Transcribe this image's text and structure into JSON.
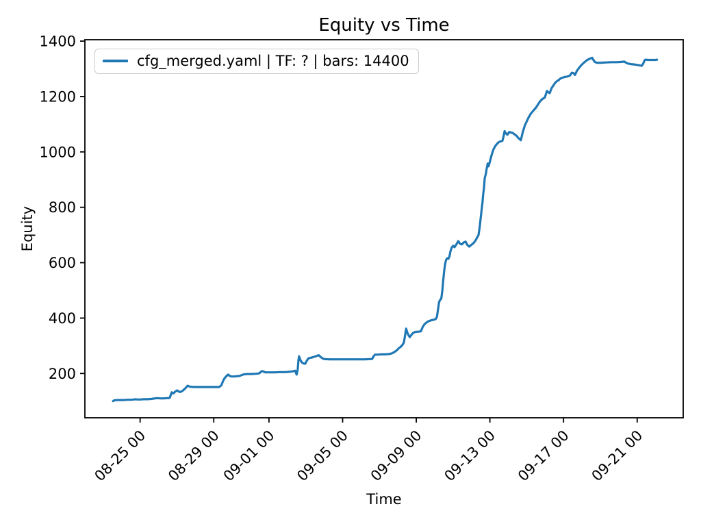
{
  "chart_data": {
    "type": "line",
    "title": "Equity vs Time",
    "xlabel": "Time",
    "ylabel": "Equity",
    "grid": false,
    "x_axis": {
      "tick_labels": [
        "08-25 00",
        "08-29 00",
        "09-01 00",
        "09-05 00",
        "09-09 00",
        "09-13 00",
        "09-17 00",
        "09-21 00"
      ],
      "tick_positions_days": [
        3,
        7,
        10,
        14,
        18,
        22,
        26,
        30
      ],
      "xlim_days": [
        0,
        32.5
      ],
      "origin_date": "08-22 00",
      "tick_rotation_deg": 45
    },
    "y_axis": {
      "ticks": [
        200,
        400,
        600,
        800,
        1000,
        1200,
        1400
      ],
      "ylim": [
        40,
        1405
      ]
    },
    "legend": {
      "position": "upper-left",
      "label": "cfg_merged.yaml | TF: ? | bars: 14400",
      "line_color": "#1f77b4"
    },
    "series": [
      {
        "name": "cfg_merged.yaml | TF: ? | bars: 14400",
        "color": "#1f77b4",
        "points_day_equity": [
          [
            1.53,
            100
          ],
          [
            1.6,
            103
          ],
          [
            1.75,
            104
          ],
          [
            1.9,
            104
          ],
          [
            2.1,
            104
          ],
          [
            2.3,
            105
          ],
          [
            2.5,
            105
          ],
          [
            2.65,
            106
          ],
          [
            2.75,
            107
          ],
          [
            2.85,
            106
          ],
          [
            3.0,
            106
          ],
          [
            3.2,
            107
          ],
          [
            3.4,
            107
          ],
          [
            3.6,
            108
          ],
          [
            3.8,
            110
          ],
          [
            3.95,
            111
          ],
          [
            4.1,
            110
          ],
          [
            4.3,
            110
          ],
          [
            4.45,
            111
          ],
          [
            4.55,
            111
          ],
          [
            4.62,
            113
          ],
          [
            4.67,
            124
          ],
          [
            4.72,
            132
          ],
          [
            4.8,
            128
          ],
          [
            4.9,
            134
          ],
          [
            5.0,
            139
          ],
          [
            5.08,
            136
          ],
          [
            5.15,
            133
          ],
          [
            5.25,
            135
          ],
          [
            5.35,
            140
          ],
          [
            5.45,
            146
          ],
          [
            5.52,
            151
          ],
          [
            5.58,
            156
          ],
          [
            5.65,
            154
          ],
          [
            5.72,
            152
          ],
          [
            5.9,
            151
          ],
          [
            6.2,
            151
          ],
          [
            6.6,
            151
          ],
          [
            7.0,
            151
          ],
          [
            7.3,
            151
          ],
          [
            7.42,
            158
          ],
          [
            7.5,
            172
          ],
          [
            7.58,
            182
          ],
          [
            7.68,
            190
          ],
          [
            7.78,
            196
          ],
          [
            7.85,
            192
          ],
          [
            7.95,
            189
          ],
          [
            8.1,
            189
          ],
          [
            8.25,
            190
          ],
          [
            8.4,
            191
          ],
          [
            8.55,
            195
          ],
          [
            8.65,
            197
          ],
          [
            8.85,
            198
          ],
          [
            9.05,
            198
          ],
          [
            9.3,
            199
          ],
          [
            9.45,
            200
          ],
          [
            9.55,
            205
          ],
          [
            9.62,
            209
          ],
          [
            9.7,
            207
          ],
          [
            9.8,
            204
          ],
          [
            10.0,
            204
          ],
          [
            10.3,
            204
          ],
          [
            10.6,
            205
          ],
          [
            10.9,
            205
          ],
          [
            11.1,
            206
          ],
          [
            11.3,
            208
          ],
          [
            11.42,
            210
          ],
          [
            11.5,
            196
          ],
          [
            11.56,
            215
          ],
          [
            11.6,
            248
          ],
          [
            11.63,
            262
          ],
          [
            11.7,
            250
          ],
          [
            11.78,
            240
          ],
          [
            11.88,
            236
          ],
          [
            11.97,
            235
          ],
          [
            12.05,
            246
          ],
          [
            12.15,
            255
          ],
          [
            12.3,
            257
          ],
          [
            12.45,
            260
          ],
          [
            12.58,
            263
          ],
          [
            12.7,
            266
          ],
          [
            12.8,
            260
          ],
          [
            12.9,
            255
          ],
          [
            13.0,
            252
          ],
          [
            13.3,
            251
          ],
          [
            13.7,
            251
          ],
          [
            14.1,
            251
          ],
          [
            14.5,
            251
          ],
          [
            14.9,
            251
          ],
          [
            15.2,
            251
          ],
          [
            15.45,
            252
          ],
          [
            15.6,
            252
          ],
          [
            15.68,
            262
          ],
          [
            15.76,
            268
          ],
          [
            15.9,
            268
          ],
          [
            16.1,
            269
          ],
          [
            16.3,
            269
          ],
          [
            16.5,
            270
          ],
          [
            16.65,
            272
          ],
          [
            16.8,
            277
          ],
          [
            16.95,
            284
          ],
          [
            17.05,
            291
          ],
          [
            17.15,
            296
          ],
          [
            17.25,
            303
          ],
          [
            17.33,
            312
          ],
          [
            17.4,
            340
          ],
          [
            17.45,
            362
          ],
          [
            17.5,
            350
          ],
          [
            17.58,
            338
          ],
          [
            17.65,
            331
          ],
          [
            17.72,
            338
          ],
          [
            17.82,
            346
          ],
          [
            17.95,
            350
          ],
          [
            18.1,
            351
          ],
          [
            18.25,
            352
          ],
          [
            18.35,
            368
          ],
          [
            18.45,
            378
          ],
          [
            18.55,
            384
          ],
          [
            18.68,
            389
          ],
          [
            18.8,
            392
          ],
          [
            18.95,
            394
          ],
          [
            19.05,
            396
          ],
          [
            19.12,
            404
          ],
          [
            19.18,
            430
          ],
          [
            19.24,
            458
          ],
          [
            19.3,
            466
          ],
          [
            19.36,
            470
          ],
          [
            19.42,
            500
          ],
          [
            19.47,
            540
          ],
          [
            19.52,
            572
          ],
          [
            19.57,
            596
          ],
          [
            19.62,
            610
          ],
          [
            19.68,
            616
          ],
          [
            19.74,
            614
          ],
          [
            19.8,
            622
          ],
          [
            19.86,
            642
          ],
          [
            19.92,
            654
          ],
          [
            20.0,
            661
          ],
          [
            20.08,
            656
          ],
          [
            20.18,
            666
          ],
          [
            20.28,
            678
          ],
          [
            20.38,
            668
          ],
          [
            20.48,
            666
          ],
          [
            20.58,
            673
          ],
          [
            20.68,
            676
          ],
          [
            20.78,
            664
          ],
          [
            20.88,
            658
          ],
          [
            20.98,
            664
          ],
          [
            21.1,
            670
          ],
          [
            21.2,
            678
          ],
          [
            21.3,
            690
          ],
          [
            21.38,
            700
          ],
          [
            21.45,
            730
          ],
          [
            21.5,
            762
          ],
          [
            21.55,
            790
          ],
          [
            21.6,
            820
          ],
          [
            21.63,
            845
          ],
          [
            21.68,
            870
          ],
          [
            21.72,
            906
          ],
          [
            21.78,
            920
          ],
          [
            21.82,
            938
          ],
          [
            21.88,
            958
          ],
          [
            21.93,
            948
          ],
          [
            22.0,
            965
          ],
          [
            22.1,
            990
          ],
          [
            22.2,
            1010
          ],
          [
            22.3,
            1022
          ],
          [
            22.4,
            1030
          ],
          [
            22.5,
            1036
          ],
          [
            22.6,
            1038
          ],
          [
            22.68,
            1040
          ],
          [
            22.75,
            1058
          ],
          [
            22.8,
            1075
          ],
          [
            22.88,
            1066
          ],
          [
            22.95,
            1062
          ],
          [
            23.05,
            1072
          ],
          [
            23.15,
            1070
          ],
          [
            23.25,
            1068
          ],
          [
            23.35,
            1063
          ],
          [
            23.45,
            1058
          ],
          [
            23.55,
            1050
          ],
          [
            23.62,
            1046
          ],
          [
            23.68,
            1042
          ],
          [
            23.78,
            1070
          ],
          [
            23.9,
            1096
          ],
          [
            24.0,
            1110
          ],
          [
            24.1,
            1124
          ],
          [
            24.2,
            1136
          ],
          [
            24.35,
            1148
          ],
          [
            24.5,
            1160
          ],
          [
            24.6,
            1170
          ],
          [
            24.7,
            1180
          ],
          [
            24.8,
            1188
          ],
          [
            24.9,
            1193
          ],
          [
            24.98,
            1196
          ],
          [
            25.1,
            1220
          ],
          [
            25.18,
            1215
          ],
          [
            25.25,
            1212
          ],
          [
            25.35,
            1230
          ],
          [
            25.45,
            1240
          ],
          [
            25.55,
            1250
          ],
          [
            25.65,
            1256
          ],
          [
            25.75,
            1260
          ],
          [
            25.85,
            1266
          ],
          [
            25.95,
            1268
          ],
          [
            26.1,
            1271
          ],
          [
            26.2,
            1272
          ],
          [
            26.35,
            1276
          ],
          [
            26.45,
            1286
          ],
          [
            26.55,
            1284
          ],
          [
            26.62,
            1278
          ],
          [
            26.72,
            1292
          ],
          [
            26.85,
            1304
          ],
          [
            26.95,
            1312
          ],
          [
            27.1,
            1322
          ],
          [
            27.25,
            1330
          ],
          [
            27.35,
            1334
          ],
          [
            27.45,
            1337
          ],
          [
            27.55,
            1340
          ],
          [
            27.62,
            1332
          ],
          [
            27.7,
            1325
          ],
          [
            27.8,
            1322
          ],
          [
            28.0,
            1322
          ],
          [
            28.3,
            1323
          ],
          [
            28.6,
            1324
          ],
          [
            28.9,
            1324
          ],
          [
            29.15,
            1325
          ],
          [
            29.3,
            1326
          ],
          [
            29.4,
            1322
          ],
          [
            29.5,
            1319
          ],
          [
            29.65,
            1317
          ],
          [
            29.8,
            1316
          ],
          [
            30.0,
            1314
          ],
          [
            30.15,
            1312
          ],
          [
            30.25,
            1311
          ],
          [
            30.32,
            1318
          ],
          [
            30.4,
            1330
          ],
          [
            30.45,
            1333
          ],
          [
            30.6,
            1332
          ],
          [
            30.8,
            1332
          ],
          [
            31.0,
            1332
          ],
          [
            31.08,
            1333
          ]
        ]
      }
    ]
  }
}
